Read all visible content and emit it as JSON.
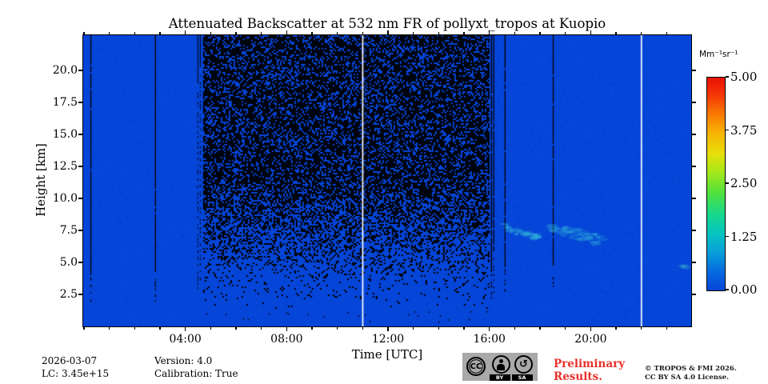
{
  "chart_data": {
    "type": "heatmap",
    "title": "Attenuated Backscatter at 532 nm FR of pollyxt_tropos at Kuopio",
    "xlabel": "Time [UTC]",
    "ylabel": "Height [km]",
    "x_range_hours": [
      0,
      24
    ],
    "x_major_ticks": [
      {
        "hour": 4,
        "label": "04:00"
      },
      {
        "hour": 8,
        "label": "08:00"
      },
      {
        "hour": 12,
        "label": "12:00"
      },
      {
        "hour": 16,
        "label": "16:00"
      },
      {
        "hour": 20,
        "label": "20:00"
      }
    ],
    "x_minor_tick_every_hours": 1,
    "y_range_km": [
      0,
      22.75
    ],
    "y_major_ticks_km": [
      2.5,
      5.0,
      7.5,
      10.0,
      12.5,
      15.0,
      17.5,
      20.0
    ],
    "grid": false,
    "colorbar": {
      "label": "Mm⁻¹sr⁻¹",
      "min": 0.0,
      "max": 5.0,
      "tick_labels": [
        "5.00",
        "3.75",
        "2.50",
        "1.25",
        "0.00"
      ],
      "colormap": "jet"
    },
    "field": {
      "background_value": 0.0,
      "background_color": "#0545d8",
      "daytime_noise_interval_hours": [
        4.7,
        16.0
      ],
      "noise_speckle_color": "#000000",
      "white_gap_hours": [
        11.0,
        22.0
      ],
      "dark_profile_gap_hours": [
        0.25,
        2.8,
        16.6,
        18.5
      ],
      "cloud_features": [
        {
          "hours": [
            16.6,
            18.1
          ],
          "height_km": [
            6.6,
            8.0
          ],
          "color": "#38c4dc"
        },
        {
          "hours": [
            18.4,
            20.5
          ],
          "height_km": [
            6.2,
            8.1
          ],
          "color": "#38c4dc"
        },
        {
          "hours": [
            23.6,
            23.9
          ],
          "height_km": [
            4.3,
            4.9
          ],
          "color": "#2f9fd0"
        }
      ]
    }
  },
  "annotations": {
    "date": "2026-03-07",
    "lc": "LC: 3.45e+15",
    "version": "Version: 4.0",
    "calibration": "Calibration: True",
    "preliminary_line1": "Preliminary",
    "preliminary_line2": "Results.",
    "preliminary_color": "#e8312a",
    "copyright_line1": "© TROPOS & FMI 2026.",
    "copyright_line2": "CC BY SA 4.0 License.",
    "license_badge": {
      "cc": "CC",
      "by": "BY",
      "sa": "SA"
    }
  }
}
